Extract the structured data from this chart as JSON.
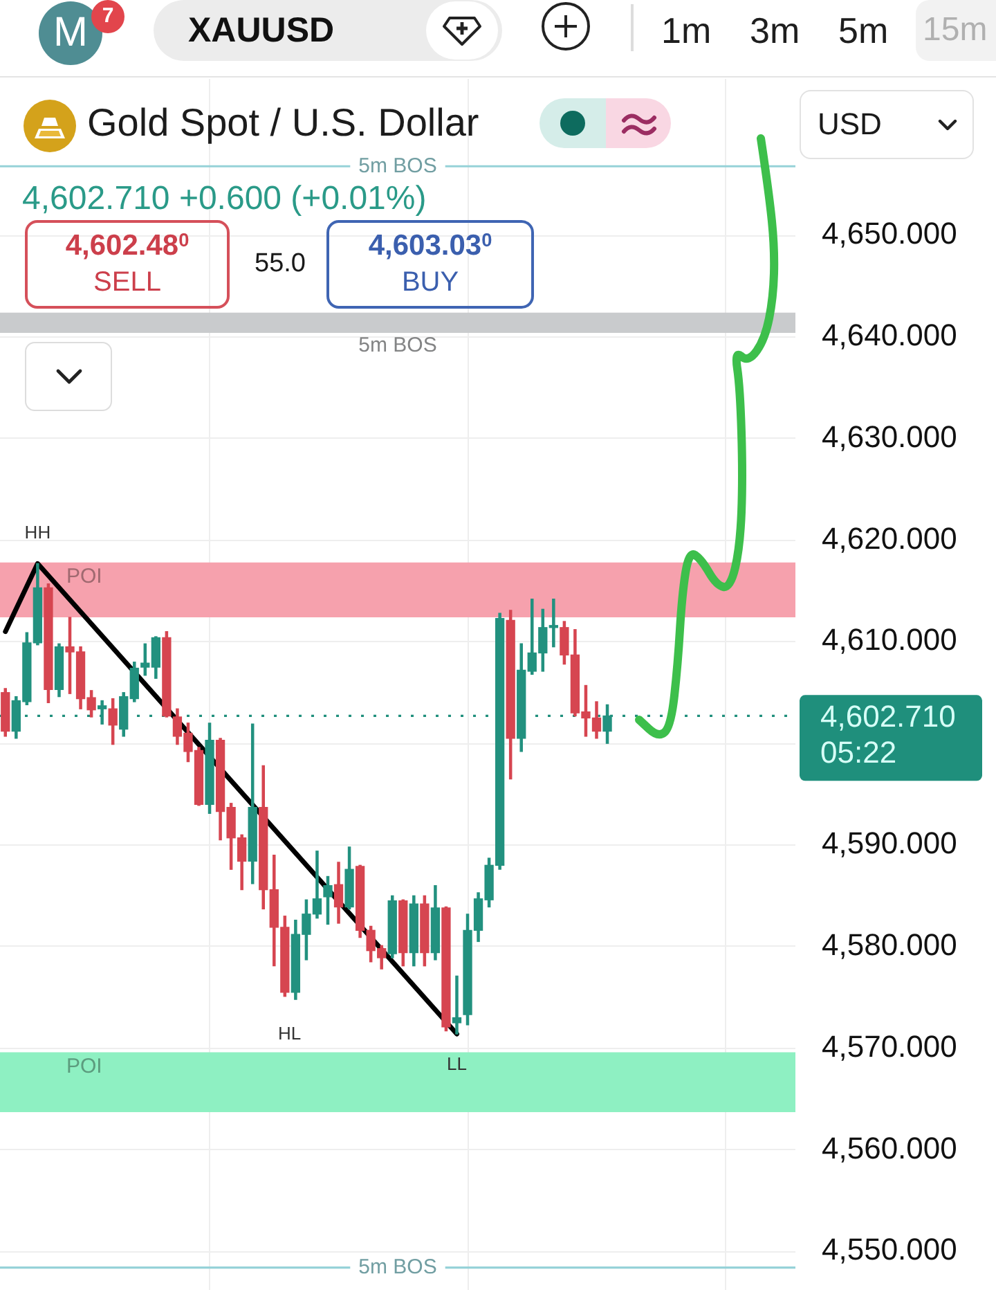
{
  "chart_data": {
    "type": "candlestick",
    "title": "Gold Spot / U.S. Dollar",
    "subtitle": "4,602.710 +0.600 (+0.01%)",
    "annotations": [
      "M",
      "7",
      "XAUUSD",
      "1m",
      "3m",
      "5m",
      "15m",
      "USD",
      "4,602.48$^{0}$",
      "SELL",
      "55.0",
      "4,603.03$^{0}$",
      "BUY",
      {
        "text": "HH",
        "y": 4617.7
      },
      "HL",
      {
        "text": "LL",
        "y": 4571.4
      }
    ],
    "categories": [
      null,
      null,
      null,
      null,
      null,
      null,
      null,
      null,
      null,
      null,
      null,
      null,
      null,
      null,
      null,
      null,
      null,
      null,
      null,
      null,
      null,
      null,
      null,
      null,
      null,
      null,
      null,
      null,
      null,
      null,
      null,
      null,
      null,
      null,
      null,
      null,
      null,
      null,
      null,
      null,
      null,
      null,
      null,
      null,
      null,
      null,
      null,
      null,
      null,
      null,
      null,
      null,
      null,
      null,
      null,
      null,
      null,
      null,
      null,
      null,
      null,
      null,
      null,
      null,
      null,
      null,
      null,
      null,
      null,
      null,
      null,
      null,
      null,
      null
    ],
    "ohlc": [
      [
        4605.0,
        4605.4,
        4600.7,
        4601.2
      ],
      [
        4601.2,
        4604.6,
        4600.5,
        4604.2
      ],
      [
        4604.1,
        4610.9,
        4603.8,
        4609.9
      ],
      [
        4609.9,
        4617.7,
        4609.7,
        4615.3
      ],
      [
        4615.3,
        4615.7,
        4604.0,
        4605.3
      ],
      [
        4605.3,
        4609.8,
        4604.6,
        4609.5
      ],
      [
        4609.5,
        4612.4,
        4604.9,
        4609.0
      ],
      [
        4609.0,
        4609.5,
        4603.4,
        4604.4
      ],
      [
        4604.5,
        4605.2,
        4602.6,
        4603.3
      ],
      [
        4603.4,
        4604.2,
        4601.9,
        4603.7
      ],
      [
        4603.4,
        4604.4,
        4599.9,
        4601.8
      ],
      [
        4601.4,
        4605.0,
        4600.7,
        4604.6
      ],
      [
        4604.4,
        4608.0,
        4604.1,
        4607.4
      ],
      [
        4607.5,
        4609.8,
        4606.7,
        4607.9
      ],
      [
        4607.5,
        4610.5,
        4606.4,
        4610.4
      ],
      [
        4610.4,
        4611.0,
        4602.6,
        4602.7
      ],
      [
        4602.6,
        4603.4,
        4599.9,
        4600.7
      ],
      [
        4601.0,
        4602.0,
        4598.2,
        4599.2
      ],
      [
        4599.3,
        4599.6,
        4593.9,
        4594.0
      ],
      [
        4594.0,
        4602.0,
        4593.1,
        4600.3
      ],
      [
        4600.3,
        4600.5,
        4590.5,
        4593.3
      ],
      [
        4593.7,
        4594.1,
        4587.6,
        4590.7
      ],
      [
        4590.7,
        4591.0,
        4585.6,
        4588.4
      ],
      [
        4588.4,
        4601.9,
        4586.2,
        4593.7
      ],
      [
        4593.7,
        4597.8,
        4583.7,
        4585.6
      ],
      [
        4585.6,
        4589.0,
        4578.1,
        4581.9
      ],
      [
        4581.9,
        4583.0,
        4575.1,
        4575.5
      ],
      [
        4575.5,
        4582.6,
        4574.8,
        4581.2
      ],
      [
        4581.2,
        4584.6,
        4578.7,
        4583.2
      ],
      [
        4583.2,
        4589.4,
        4582.8,
        4584.7
      ],
      [
        4584.9,
        4586.9,
        4582.2,
        4586.0
      ],
      [
        4586.1,
        4588.3,
        4582.3,
        4583.9
      ],
      [
        4583.9,
        4589.8,
        4583.7,
        4587.6
      ],
      [
        4587.9,
        4588.0,
        4580.9,
        4581.6
      ],
      [
        4581.6,
        4582.0,
        4578.5,
        4579.6
      ],
      [
        4579.8,
        4580.1,
        4577.8,
        4578.9
      ],
      [
        4579.3,
        4585.0,
        4578.9,
        4584.5
      ],
      [
        4584.5,
        4584.6,
        4578.1,
        4579.4
      ],
      [
        4579.4,
        4585.0,
        4578.1,
        4584.2
      ],
      [
        4584.2,
        4585.0,
        4578.1,
        4579.4
      ],
      [
        4579.4,
        4586.0,
        4578.7,
        4583.8
      ],
      [
        4583.8,
        4583.9,
        4571.7,
        4572.1
      ],
      [
        4572.5,
        4577.1,
        4571.4,
        4573.0
      ],
      [
        4573.3,
        4583.2,
        4572.3,
        4581.6
      ],
      [
        4581.6,
        4585.3,
        4580.5,
        4584.7
      ],
      [
        4584.6,
        4588.7,
        4583.9,
        4588.0
      ],
      [
        4588.0,
        4612.8,
        4587.6,
        4612.3
      ],
      [
        4612.1,
        4613.1,
        4596.5,
        4600.5
      ],
      [
        4600.5,
        4609.8,
        4599.2,
        4607.2
      ],
      [
        4607.1,
        4614.2,
        4606.8,
        4608.9
      ],
      [
        4608.9,
        4613.2,
        4607.1,
        4611.4
      ],
      [
        4611.4,
        4614.2,
        4609.5,
        4611.6
      ],
      [
        4611.4,
        4612.0,
        4607.8,
        4608.7
      ],
      [
        4608.7,
        4611.2,
        4602.7,
        4603.0
      ],
      [
        4603.1,
        4605.7,
        4600.7,
        4602.5
      ],
      [
        4602.5,
        4604.1,
        4600.5,
        4601.2
      ],
      [
        4601.2,
        4603.8,
        4600.0,
        4602.7
      ],
      null,
      null,
      null,
      null,
      null,
      null,
      null,
      null,
      null,
      null,
      null,
      null,
      null,
      null,
      null,
      null,
      null
    ],
    "colors": [
      "#d64550",
      "#22917f",
      "#22917f",
      "#22917f",
      "#d64550",
      "#22917f",
      "#d64550",
      "#d64550",
      "#d64550",
      "#22917f",
      "#d64550",
      "#22917f",
      "#22917f",
      "#22917f",
      "#22917f",
      "#d64550",
      "#d64550",
      "#d64550",
      "#d64550",
      "#22917f",
      "#d64550",
      "#d64550",
      "#d64550",
      "#22917f",
      "#d64550",
      "#d64550",
      "#d64550",
      "#22917f",
      "#22917f",
      "#22917f",
      "#22917f",
      "#d64550",
      "#22917f",
      "#d64550",
      "#d64550",
      "#d64550",
      "#22917f",
      "#d64550",
      "#22917f",
      "#d64550",
      "#22917f",
      "#d64550",
      "#22917f",
      "#22917f",
      "#22917f",
      "#22917f",
      "#22917f",
      "#d64550",
      "#22917f",
      "#22917f",
      "#22917f",
      "#22917f",
      "#d64550",
      "#d64550",
      "#d64550",
      "#d64550",
      "#22917f",
      null,
      null,
      null,
      null,
      null,
      null,
      null,
      null,
      null,
      null,
      null,
      null,
      null,
      null,
      null,
      null,
      null
    ],
    "series": [
      {
        "type": "line",
        "color": "#000000",
        "values": [
          4611.0,
          null,
          null,
          4617.7,
          null,
          null,
          null,
          null,
          null,
          null,
          null,
          null,
          null,
          null,
          null,
          null,
          null,
          null,
          null,
          null,
          null,
          null,
          null,
          null,
          null,
          null,
          null,
          null,
          null,
          null,
          null,
          null,
          null,
          null,
          null,
          null,
          null,
          null,
          null,
          null,
          null,
          null,
          4571.4,
          null,
          null,
          null,
          null,
          null,
          null,
          null,
          null,
          null,
          null,
          null,
          null,
          null,
          null,
          null,
          null,
          null,
          null,
          null,
          null,
          null,
          null,
          null,
          null,
          null,
          null,
          null,
          null,
          null,
          null,
          null
        ]
      }
    ],
    "ylim": [
      4546.2,
      4665.4
    ],
    "yticks": [
      {
        "value": 4550,
        "label": "4,550.000"
      },
      {
        "value": 4560,
        "label": "4,560.000"
      },
      {
        "value": 4570,
        "label": "4,570.000"
      },
      {
        "value": 4580,
        "label": "4,580.000"
      },
      {
        "value": 4590,
        "label": "4,590.000"
      },
      {
        "value": 4600,
        "label": null
      },
      {
        "value": 4610,
        "label": "4,610.000"
      },
      {
        "value": 4620,
        "label": "4,620.000"
      },
      {
        "value": 4630,
        "label": "4,630.000"
      },
      {
        "value": 4640,
        "label": "4,640.000"
      },
      {
        "value": 4650,
        "label": "4,650.000"
      }
    ],
    "grid": true,
    "tick_labels": "y",
    "ref_lines": [
      {
        "axis": "y",
        "value": 4656.8,
        "label": "5m BOS",
        "color": "#96d2d8"
      },
      {
        "axis": "y",
        "value": 4602.71,
        "label": "4,602.710 05:22",
        "color": "#1f8f7c",
        "line_style": "dotted"
      },
      {
        "axis": "y",
        "value": 4548.4,
        "label": "5m BOS",
        "color": "#96d2d8"
      }
    ],
    "bands": [
      {
        "axis": "y",
        "from": 4640.4,
        "to": 4642.4,
        "label": "5m BOS",
        "color": "#c9cbcd"
      },
      {
        "axis": "y",
        "from": 4612.4,
        "to": 4617.8,
        "label": "POI",
        "color": "#f6a1ad"
      },
      {
        "axis": "y",
        "from": 4563.7,
        "to": 4569.6,
        "label": "POI",
        "color": "#8ef0c2"
      }
    ]
  }
}
